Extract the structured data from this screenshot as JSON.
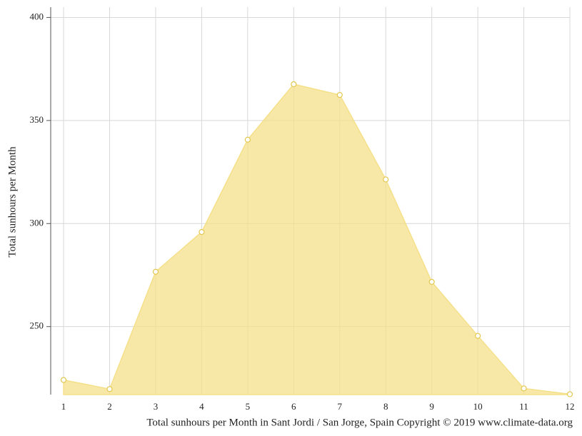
{
  "chart_data": {
    "type": "area",
    "title": "Total sunhours per Month in Sant Jordi / San Jorge, Spain Copyright © 2019 www.climate-data.org",
    "y_label": "Total sunhours per Month",
    "x": [
      1,
      2,
      3,
      4,
      5,
      6,
      7,
      8,
      9,
      10,
      11,
      12
    ],
    "series": [
      {
        "name": "Total sunhours per Month",
        "color": "#f5e08a",
        "values": [
          224.1,
          219.7,
          276.6,
          295.9,
          340.7,
          367.6,
          362.4,
          321.4,
          271.7,
          245.5,
          220,
          217.2
        ]
      }
    ],
    "xlim": [
      0.72,
      12
    ],
    "xticks": [
      1,
      2,
      3,
      4,
      5,
      6,
      7,
      8,
      9,
      10,
      11,
      12
    ],
    "ylim": [
      217,
      405
    ],
    "yticks": [
      250,
      300,
      350,
      400
    ],
    "grid": true
  }
}
